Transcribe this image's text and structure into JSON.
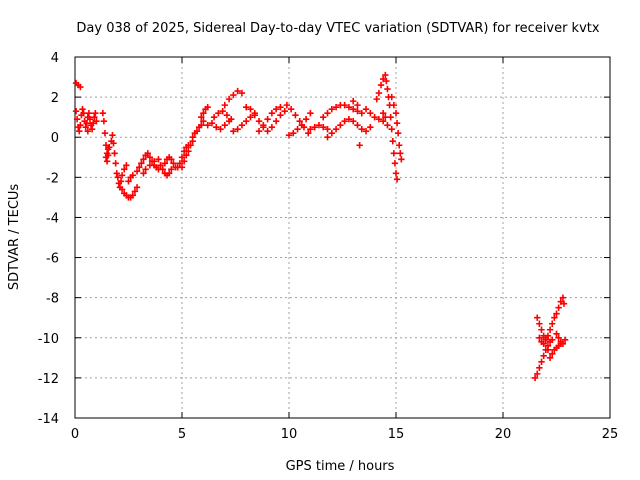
{
  "chart_data": {
    "type": "scatter",
    "title": "Day 038 of 2025, Sidereal Day-to-day VTEC variation (SDTVAR) for receiver kvtx",
    "xlabel": "GPS time / hours",
    "ylabel": "SDTVAR / TECUs",
    "xlim": [
      0,
      25
    ],
    "ylim": [
      -14,
      4
    ],
    "xticks": [
      0,
      5,
      10,
      15,
      20,
      25
    ],
    "yticks": [
      -14,
      -12,
      -10,
      -8,
      -6,
      -4,
      -2,
      0,
      2,
      4
    ],
    "grid": true,
    "marker": "plus",
    "color": "#ff0000",
    "series": [
      {
        "points": [
          [
            0.05,
            2.7
          ],
          [
            0.15,
            2.6
          ],
          [
            0.25,
            2.5
          ],
          [
            0.05,
            1.3
          ],
          [
            0.1,
            0.9
          ],
          [
            0.15,
            0.5
          ],
          [
            0.2,
            0.3
          ],
          [
            0.25,
            0.6
          ],
          [
            0.3,
            1.1
          ],
          [
            0.35,
            1.4
          ],
          [
            0.4,
            1.2
          ],
          [
            0.45,
            0.8
          ],
          [
            0.5,
            0.5
          ],
          [
            0.55,
            0.7
          ],
          [
            0.6,
            1.0
          ],
          [
            0.65,
            1.2
          ],
          [
            0.7,
            0.9
          ],
          [
            0.75,
            0.6
          ],
          [
            0.8,
            0.4
          ],
          [
            0.85,
            0.7
          ],
          [
            0.9,
            1.0
          ],
          [
            0.95,
            1.2
          ],
          [
            1.0,
            0.8
          ],
          [
            0.6,
            0.3
          ],
          [
            1.3,
            1.2
          ],
          [
            1.35,
            0.8
          ],
          [
            1.4,
            0.2
          ],
          [
            1.45,
            -0.4
          ],
          [
            1.5,
            -0.8
          ],
          [
            1.55,
            -0.6
          ],
          [
            1.45,
            -1.0
          ],
          [
            1.5,
            -1.2
          ],
          [
            1.55,
            -0.9
          ],
          [
            1.6,
            -0.5
          ],
          [
            1.7,
            -0.2
          ],
          [
            1.75,
            0.1
          ],
          [
            1.8,
            -0.3
          ],
          [
            1.85,
            -0.8
          ],
          [
            1.9,
            -1.3
          ],
          [
            1.95,
            -1.8
          ],
          [
            2.0,
            -2.0
          ],
          [
            2.05,
            -2.3
          ],
          [
            2.1,
            -2.5
          ],
          [
            2.15,
            -2.2
          ],
          [
            2.2,
            -1.9
          ],
          [
            2.3,
            -1.6
          ],
          [
            2.4,
            -1.4
          ],
          [
            2.2,
            -2.6
          ],
          [
            2.3,
            -2.8
          ],
          [
            2.4,
            -2.9
          ],
          [
            2.5,
            -3.0
          ],
          [
            2.6,
            -3.0
          ],
          [
            2.7,
            -2.9
          ],
          [
            2.8,
            -2.7
          ],
          [
            2.9,
            -2.5
          ],
          [
            2.5,
            -2.2
          ],
          [
            2.6,
            -2.0
          ],
          [
            2.7,
            -1.9
          ],
          [
            2.9,
            -1.7
          ],
          [
            3.0,
            -1.5
          ],
          [
            3.1,
            -1.3
          ],
          [
            3.2,
            -1.1
          ],
          [
            3.3,
            -0.9
          ],
          [
            3.4,
            -0.8
          ],
          [
            3.5,
            -1.0
          ],
          [
            3.6,
            -1.2
          ],
          [
            3.7,
            -1.4
          ],
          [
            3.8,
            -1.5
          ],
          [
            3.9,
            -1.6
          ],
          [
            3.2,
            -1.8
          ],
          [
            3.3,
            -1.6
          ],
          [
            3.5,
            -1.4
          ],
          [
            3.7,
            -1.2
          ],
          [
            3.9,
            -1.1
          ],
          [
            4.0,
            -1.4
          ],
          [
            4.1,
            -1.6
          ],
          [
            4.2,
            -1.8
          ],
          [
            4.3,
            -1.9
          ],
          [
            4.4,
            -1.8
          ],
          [
            4.5,
            -1.6
          ],
          [
            4.2,
            -1.3
          ],
          [
            4.3,
            -1.1
          ],
          [
            4.4,
            -1.0
          ],
          [
            4.5,
            -1.1
          ],
          [
            4.6,
            -1.3
          ],
          [
            4.7,
            -1.5
          ],
          [
            4.8,
            -1.5
          ],
          [
            4.9,
            -1.3
          ],
          [
            5.0,
            -1.0
          ],
          [
            5.1,
            -0.7
          ],
          [
            5.2,
            -0.5
          ],
          [
            5.3,
            -0.4
          ],
          [
            5.0,
            -1.5
          ],
          [
            5.1,
            -1.2
          ],
          [
            5.2,
            -0.9
          ],
          [
            5.3,
            -0.7
          ],
          [
            5.4,
            -0.4
          ],
          [
            5.5,
            -0.2
          ],
          [
            5.5,
            0.0
          ],
          [
            5.6,
            0.2
          ],
          [
            5.7,
            0.3
          ],
          [
            5.8,
            0.5
          ],
          [
            5.9,
            0.6
          ],
          [
            6.0,
            0.8
          ],
          [
            5.9,
            1.0
          ],
          [
            6.0,
            1.2
          ],
          [
            6.1,
            1.4
          ],
          [
            6.2,
            1.5
          ],
          [
            6.2,
            0.6
          ],
          [
            6.4,
            0.7
          ],
          [
            6.6,
            0.5
          ],
          [
            6.8,
            0.4
          ],
          [
            7.0,
            0.6
          ],
          [
            7.2,
            0.8
          ],
          [
            6.5,
            1.0
          ],
          [
            6.7,
            1.2
          ],
          [
            6.9,
            1.3
          ],
          [
            7.1,
            1.1
          ],
          [
            7.3,
            0.9
          ],
          [
            7.0,
            1.6
          ],
          [
            7.2,
            1.9
          ],
          [
            7.4,
            2.1
          ],
          [
            7.6,
            2.3
          ],
          [
            7.8,
            2.2
          ],
          [
            7.4,
            0.3
          ],
          [
            7.6,
            0.4
          ],
          [
            7.8,
            0.6
          ],
          [
            8.0,
            0.8
          ],
          [
            8.2,
            1.0
          ],
          [
            8.4,
            1.2
          ],
          [
            8.0,
            1.5
          ],
          [
            8.2,
            1.4
          ],
          [
            8.4,
            1.1
          ],
          [
            8.6,
            0.8
          ],
          [
            8.8,
            0.5
          ],
          [
            8.6,
            0.3
          ],
          [
            8.8,
            0.6
          ],
          [
            9.0,
            0.9
          ],
          [
            9.2,
            1.2
          ],
          [
            9.4,
            1.4
          ],
          [
            9.6,
            1.5
          ],
          [
            9.0,
            0.3
          ],
          [
            9.2,
            0.5
          ],
          [
            9.4,
            0.8
          ],
          [
            9.6,
            1.1
          ],
          [
            9.8,
            1.3
          ],
          [
            9.9,
            1.6
          ],
          [
            10.1,
            1.4
          ],
          [
            10.3,
            1.1
          ],
          [
            10.5,
            0.8
          ],
          [
            10.7,
            0.5
          ],
          [
            10.9,
            0.2
          ],
          [
            10.0,
            0.1
          ],
          [
            10.2,
            0.2
          ],
          [
            10.4,
            0.4
          ],
          [
            10.6,
            0.6
          ],
          [
            10.8,
            0.9
          ],
          [
            11.0,
            1.2
          ],
          [
            11.0,
            0.4
          ],
          [
            11.2,
            0.5
          ],
          [
            11.4,
            0.6
          ],
          [
            11.6,
            0.5
          ],
          [
            11.8,
            0.4
          ],
          [
            11.6,
            1.0
          ],
          [
            11.8,
            1.2
          ],
          [
            12.0,
            1.4
          ],
          [
            12.2,
            1.5
          ],
          [
            12.4,
            1.6
          ],
          [
            12.6,
            1.6
          ],
          [
            12.8,
            1.5
          ],
          [
            13.0,
            1.4
          ],
          [
            13.2,
            1.3
          ],
          [
            13.4,
            1.2
          ],
          [
            11.8,
            0.0
          ],
          [
            12.0,
            0.2
          ],
          [
            12.2,
            0.4
          ],
          [
            12.4,
            0.6
          ],
          [
            12.6,
            0.8
          ],
          [
            12.8,
            0.9
          ],
          [
            13.0,
            0.8
          ],
          [
            13.2,
            0.6
          ],
          [
            13.4,
            0.4
          ],
          [
            13.6,
            0.3
          ],
          [
            13.8,
            0.5
          ],
          [
            13.6,
            1.4
          ],
          [
            13.8,
            1.2
          ],
          [
            14.0,
            1.0
          ],
          [
            14.2,
            0.9
          ],
          [
            14.4,
            0.8
          ],
          [
            13.3,
            -0.4
          ],
          [
            13.0,
            1.8
          ],
          [
            13.2,
            1.6
          ],
          [
            14.1,
            1.9
          ],
          [
            14.2,
            2.2
          ],
          [
            14.3,
            2.6
          ],
          [
            14.4,
            2.9
          ],
          [
            14.5,
            3.1
          ],
          [
            14.55,
            2.8
          ],
          [
            14.6,
            2.4
          ],
          [
            14.65,
            2.0
          ],
          [
            14.7,
            1.6
          ],
          [
            14.75,
            1.0
          ],
          [
            14.8,
            0.4
          ],
          [
            14.85,
            -0.2
          ],
          [
            14.9,
            -0.8
          ],
          [
            14.95,
            -1.3
          ],
          [
            15.0,
            -1.8
          ],
          [
            15.05,
            -2.1
          ],
          [
            14.8,
            2.0
          ],
          [
            14.9,
            1.6
          ],
          [
            15.0,
            1.2
          ],
          [
            15.05,
            0.7
          ],
          [
            15.1,
            0.2
          ],
          [
            15.15,
            -0.4
          ],
          [
            15.2,
            -0.8
          ],
          [
            15.25,
            -1.1
          ],
          [
            14.4,
            1.2
          ],
          [
            14.5,
            1.0
          ],
          [
            14.6,
            0.6
          ]
        ]
      },
      {
        "points": [
          [
            21.5,
            -12.0
          ],
          [
            21.6,
            -11.8
          ],
          [
            21.7,
            -11.5
          ],
          [
            21.8,
            -11.2
          ],
          [
            21.9,
            -10.9
          ],
          [
            22.0,
            -10.6
          ],
          [
            22.1,
            -10.4
          ],
          [
            22.2,
            -10.2
          ],
          [
            22.3,
            -10.1
          ],
          [
            21.6,
            -9.0
          ],
          [
            21.7,
            -9.3
          ],
          [
            21.8,
            -9.6
          ],
          [
            21.9,
            -9.9
          ],
          [
            22.0,
            -10.1
          ],
          [
            22.1,
            -9.9
          ],
          [
            22.2,
            -9.6
          ],
          [
            22.3,
            -9.3
          ],
          [
            22.4,
            -9.0
          ],
          [
            22.5,
            -8.8
          ],
          [
            22.6,
            -8.5
          ],
          [
            22.7,
            -8.2
          ],
          [
            22.8,
            -8.0
          ],
          [
            22.85,
            -8.3
          ],
          [
            22.5,
            -9.8
          ],
          [
            22.6,
            -10.0
          ],
          [
            22.7,
            -10.2
          ],
          [
            22.8,
            -10.3
          ],
          [
            22.3,
            -10.8
          ],
          [
            22.4,
            -10.6
          ],
          [
            22.5,
            -10.5
          ],
          [
            22.6,
            -10.4
          ],
          [
            22.7,
            -10.3
          ],
          [
            22.9,
            -10.1
          ],
          [
            21.7,
            -10.0
          ],
          [
            21.8,
            -10.2
          ],
          [
            21.9,
            -10.3
          ],
          [
            22.0,
            -10.0
          ],
          [
            22.1,
            -10.6
          ],
          [
            22.2,
            -11.0
          ]
        ]
      }
    ]
  }
}
